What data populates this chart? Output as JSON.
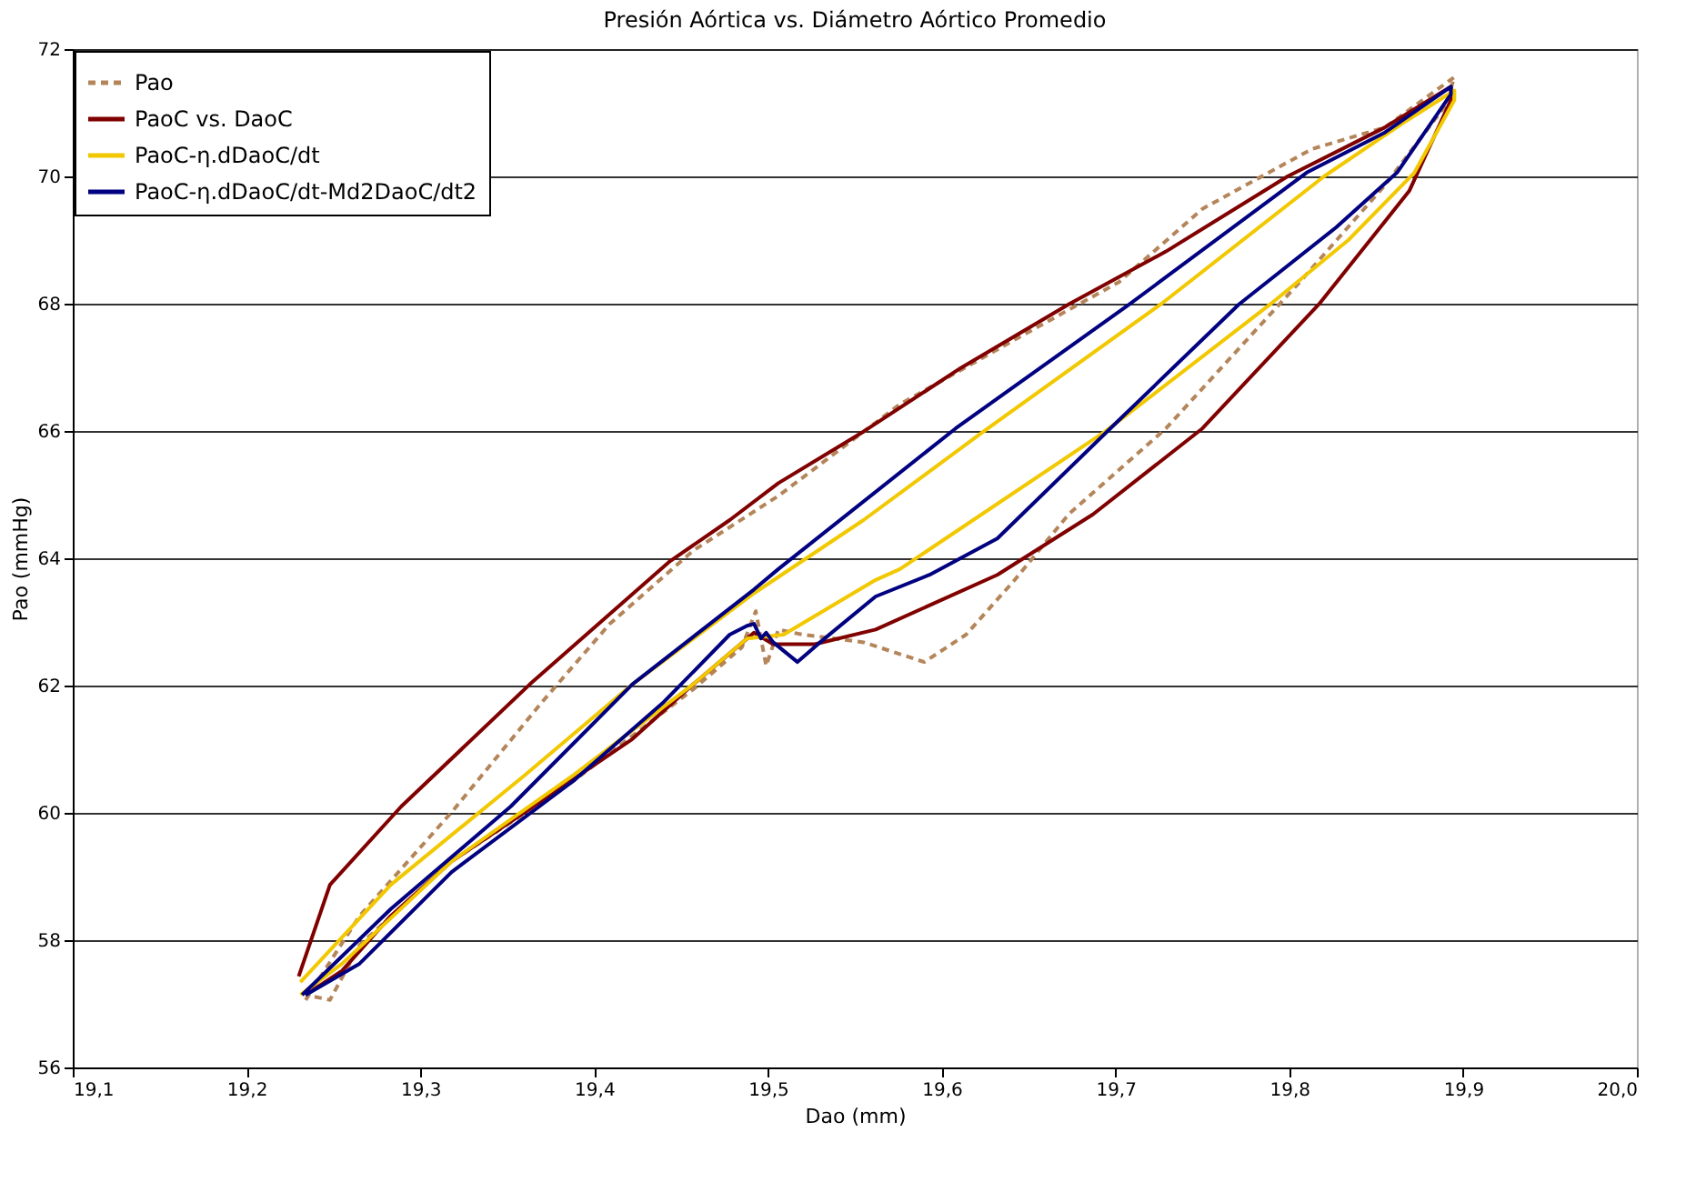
{
  "chart_data": {
    "type": "line",
    "title": "Presión Aórtica vs. Diámetro Aórtico Promedio",
    "xlabel": "Dao (mm)",
    "ylabel": "Pao (mmHg)",
    "xlim": [
      19.1,
      20.0
    ],
    "xticks": [
      {
        "value": 19.1,
        "label": "19,1"
      },
      {
        "value": 19.2,
        "label": "19,2"
      },
      {
        "value": 19.3,
        "label": "19,3"
      },
      {
        "value": 19.4,
        "label": "19,4"
      },
      {
        "value": 19.5,
        "label": "19,5"
      },
      {
        "value": 19.6,
        "label": "19,6"
      },
      {
        "value": 19.7,
        "label": "19,7"
      },
      {
        "value": 19.8,
        "label": "19,8"
      },
      {
        "value": 19.9,
        "label": "19,9"
      },
      {
        "value": 20.0,
        "label": "20,0"
      }
    ],
    "ylim": [
      56,
      72
    ],
    "yticks": [
      56,
      58,
      60,
      62,
      64,
      66,
      68,
      70,
      72
    ],
    "grid": "y",
    "legend": "top left",
    "series": [
      {
        "name": "Pao",
        "color": "#b5855a",
        "line_style": "dashed",
        "x": [
          19.234,
          19.265,
          19.318,
          19.37,
          19.409,
          19.457,
          19.506,
          19.576,
          19.645,
          19.702,
          19.75,
          19.813,
          19.855,
          19.895,
          19.89,
          19.855,
          19.806,
          19.729,
          19.673,
          19.642,
          19.614,
          19.59,
          19.555,
          19.52,
          19.506,
          19.499,
          19.493,
          19.485,
          19.457,
          19.388,
          19.318,
          19.265,
          19.248,
          19.234
        ],
        "values": [
          57.06,
          58.38,
          60.01,
          61.74,
          62.97,
          64.12,
          64.98,
          66.42,
          67.48,
          68.34,
          69.49,
          70.43,
          70.77,
          71.56,
          71.12,
          69.86,
          68.34,
          66.04,
          64.69,
          63.66,
          62.8,
          62.37,
          62.68,
          62.8,
          62.88,
          62.31,
          63.17,
          62.6,
          61.94,
          60.5,
          59.24,
          57.92,
          57.06,
          57.14
        ]
      },
      {
        "name": "PaoC vs. DaoC",
        "color": "#800000",
        "x": [
          19.23,
          19.248,
          19.289,
          19.363,
          19.443,
          19.478,
          19.506,
          19.555,
          19.611,
          19.673,
          19.729,
          19.799,
          19.855,
          19.893,
          19.893,
          19.869,
          19.817,
          19.75,
          19.687,
          19.632,
          19.562,
          19.527,
          19.503,
          19.492,
          19.457,
          19.422,
          19.36,
          19.318,
          19.283,
          19.255,
          19.234
        ],
        "values": [
          57.43,
          58.87,
          60.1,
          62.02,
          63.94,
          64.6,
          65.18,
          65.99,
          66.99,
          67.99,
          68.82,
          70.0,
          70.77,
          71.41,
          71.2,
          69.77,
          67.99,
          66.04,
          64.69,
          63.74,
          62.88,
          62.65,
          62.65,
          62.83,
          62.02,
          61.16,
          60.01,
          59.24,
          58.38,
          57.52,
          57.14
        ]
      },
      {
        "name": "PaoC-η.dDaoC/dt",
        "color": "#f2c800",
        "x": [
          19.231,
          19.283,
          19.36,
          19.422,
          19.492,
          19.555,
          19.624,
          19.726,
          19.82,
          19.865,
          19.895,
          19.895,
          19.872,
          19.834,
          19.789,
          19.694,
          19.576,
          19.562,
          19.509,
          19.488,
          19.457,
          19.388,
          19.318,
          19.255,
          19.231
        ],
        "values": [
          57.34,
          58.87,
          60.59,
          62.02,
          63.45,
          64.6,
          65.99,
          67.99,
          70.0,
          70.83,
          71.35,
          71.2,
          70.06,
          69.0,
          67.99,
          65.99,
          63.83,
          63.66,
          62.8,
          62.74,
          62.02,
          60.59,
          59.24,
          57.63,
          57.14
        ]
      },
      {
        "name": "PaoC-η.dDaoC/dt-Md2DaoC/dt2",
        "color": "#000080",
        "x": [
          19.232,
          19.283,
          19.352,
          19.422,
          19.492,
          19.506,
          19.608,
          19.708,
          19.81,
          19.855,
          19.893,
          19.893,
          19.862,
          19.827,
          19.771,
          19.697,
          19.632,
          19.593,
          19.562,
          19.53,
          19.517,
          19.503,
          19.499,
          19.496,
          19.492,
          19.488,
          19.478,
          19.44,
          19.388,
          19.318,
          19.265,
          19.234
        ],
        "values": [
          57.14,
          58.49,
          60.1,
          62.02,
          63.51,
          63.83,
          66.04,
          67.99,
          70.06,
          70.69,
          71.41,
          71.29,
          70.06,
          69.2,
          67.99,
          66.04,
          64.31,
          63.74,
          63.4,
          62.68,
          62.37,
          62.68,
          62.83,
          62.74,
          62.97,
          62.94,
          62.8,
          61.74,
          60.5,
          59.07,
          57.63,
          57.14
        ]
      }
    ]
  }
}
